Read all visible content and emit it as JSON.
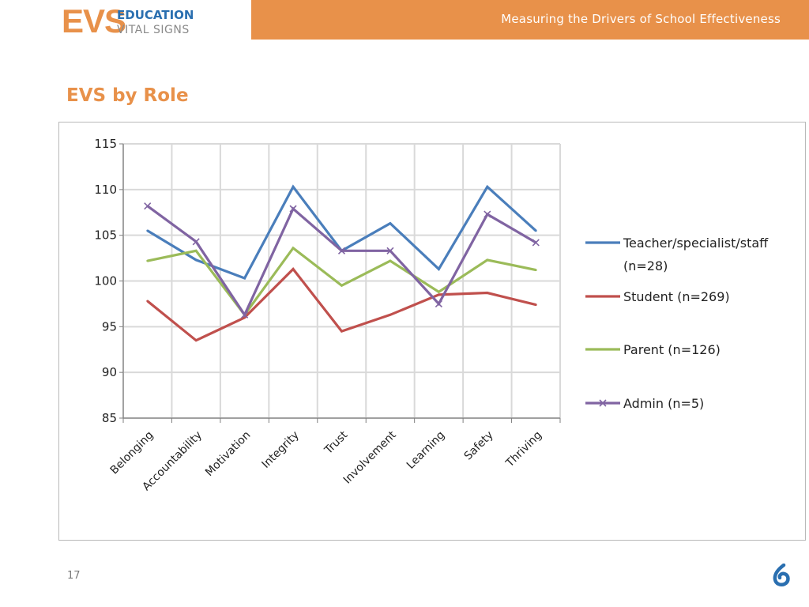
{
  "logo": {
    "evs": "EVS",
    "line1": "EDUCATION",
    "line2": "VITAL SIGNS"
  },
  "header": {
    "title": "Measuring the Drivers of School Effectiveness"
  },
  "slide": {
    "title": "EVS by Role",
    "page_number": "17"
  },
  "colors": {
    "accent": "#e8914a",
    "brand_blue": "#2a6fb0"
  },
  "icons": {
    "footer": "brand-mark-icon"
  },
  "chart_data": {
    "type": "line",
    "categories": [
      "Belonging",
      "Accountability",
      "Motivation",
      "Integrity",
      "Trust",
      "Involvement",
      "Learning",
      "Safety",
      "Thriving"
    ],
    "ylim": [
      85,
      115
    ],
    "yticks": [
      85,
      90,
      95,
      100,
      105,
      110,
      115
    ],
    "grid": true,
    "legend": "right",
    "series": [
      {
        "name": "Teacher/specialist/staff (n=28)",
        "legend_lines": [
          "Teacher/specialist/staff",
          "(n=28)"
        ],
        "color": "#4a7ebb",
        "marker": "none",
        "values": [
          105.5,
          102.3,
          100.3,
          110.3,
          103.3,
          106.3,
          101.3,
          110.3,
          105.5
        ]
      },
      {
        "name": "Student (n=269)",
        "legend_lines": [
          "Student (n=269)"
        ],
        "color": "#c0504d",
        "marker": "none",
        "values": [
          97.8,
          93.5,
          96.0,
          101.3,
          94.5,
          96.3,
          98.5,
          98.7,
          97.4
        ]
      },
      {
        "name": "Parent (n=126)",
        "legend_lines": [
          "Parent (n=126)"
        ],
        "color": "#9bbb59",
        "marker": "none",
        "values": [
          102.2,
          103.3,
          96.3,
          103.6,
          99.5,
          102.2,
          98.8,
          102.3,
          101.2
        ]
      },
      {
        "name": "Admin (n=5)",
        "legend_lines": [
          "Admin (n=5)"
        ],
        "color": "#8064a2",
        "marker": "x",
        "values": [
          108.2,
          104.3,
          96.3,
          107.9,
          103.3,
          103.3,
          97.5,
          107.3,
          104.2
        ]
      }
    ]
  }
}
